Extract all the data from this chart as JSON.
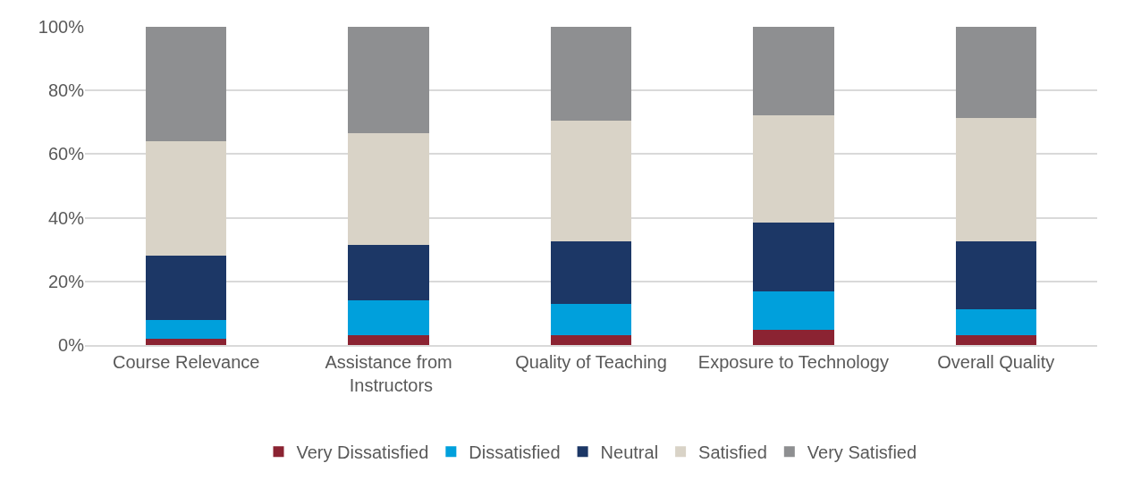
{
  "chart_data": {
    "type": "bar",
    "stacked": true,
    "categories": [
      "Course Relevance",
      "Assistance from Instructors",
      "Quality of Teaching",
      "Exposure to Technology",
      "Overall Quality"
    ],
    "series": [
      {
        "name": "Very Dissatisfied",
        "color": "#8b2332",
        "values": [
          2,
          3,
          3,
          4.7,
          3
        ]
      },
      {
        "name": "Dissatisfied",
        "color": "#00a0dc",
        "values": [
          6,
          11,
          10,
          12.1,
          8.2
        ]
      },
      {
        "name": "Neutral",
        "color": "#1c3766",
        "values": [
          20,
          17.5,
          19.5,
          21.7,
          21.4
        ]
      },
      {
        "name": "Satisfied",
        "color": "#d9d3c7",
        "values": [
          36,
          35,
          38,
          33.7,
          38.8
        ]
      },
      {
        "name": "Very Satisfied",
        "color": "#8e8f91",
        "values": [
          36,
          33.5,
          29.5,
          27.8,
          28.6
        ]
      }
    ],
    "ylim": [
      0,
      100
    ],
    "yticks": [
      {
        "value": 0,
        "label": "0%"
      },
      {
        "value": 20,
        "label": "20%"
      },
      {
        "value": 40,
        "label": "40%"
      },
      {
        "value": 60,
        "label": "60%"
      },
      {
        "value": 80,
        "label": "80%"
      },
      {
        "value": 100,
        "label": "100%"
      }
    ],
    "grid": "y",
    "legend": "bottom"
  }
}
